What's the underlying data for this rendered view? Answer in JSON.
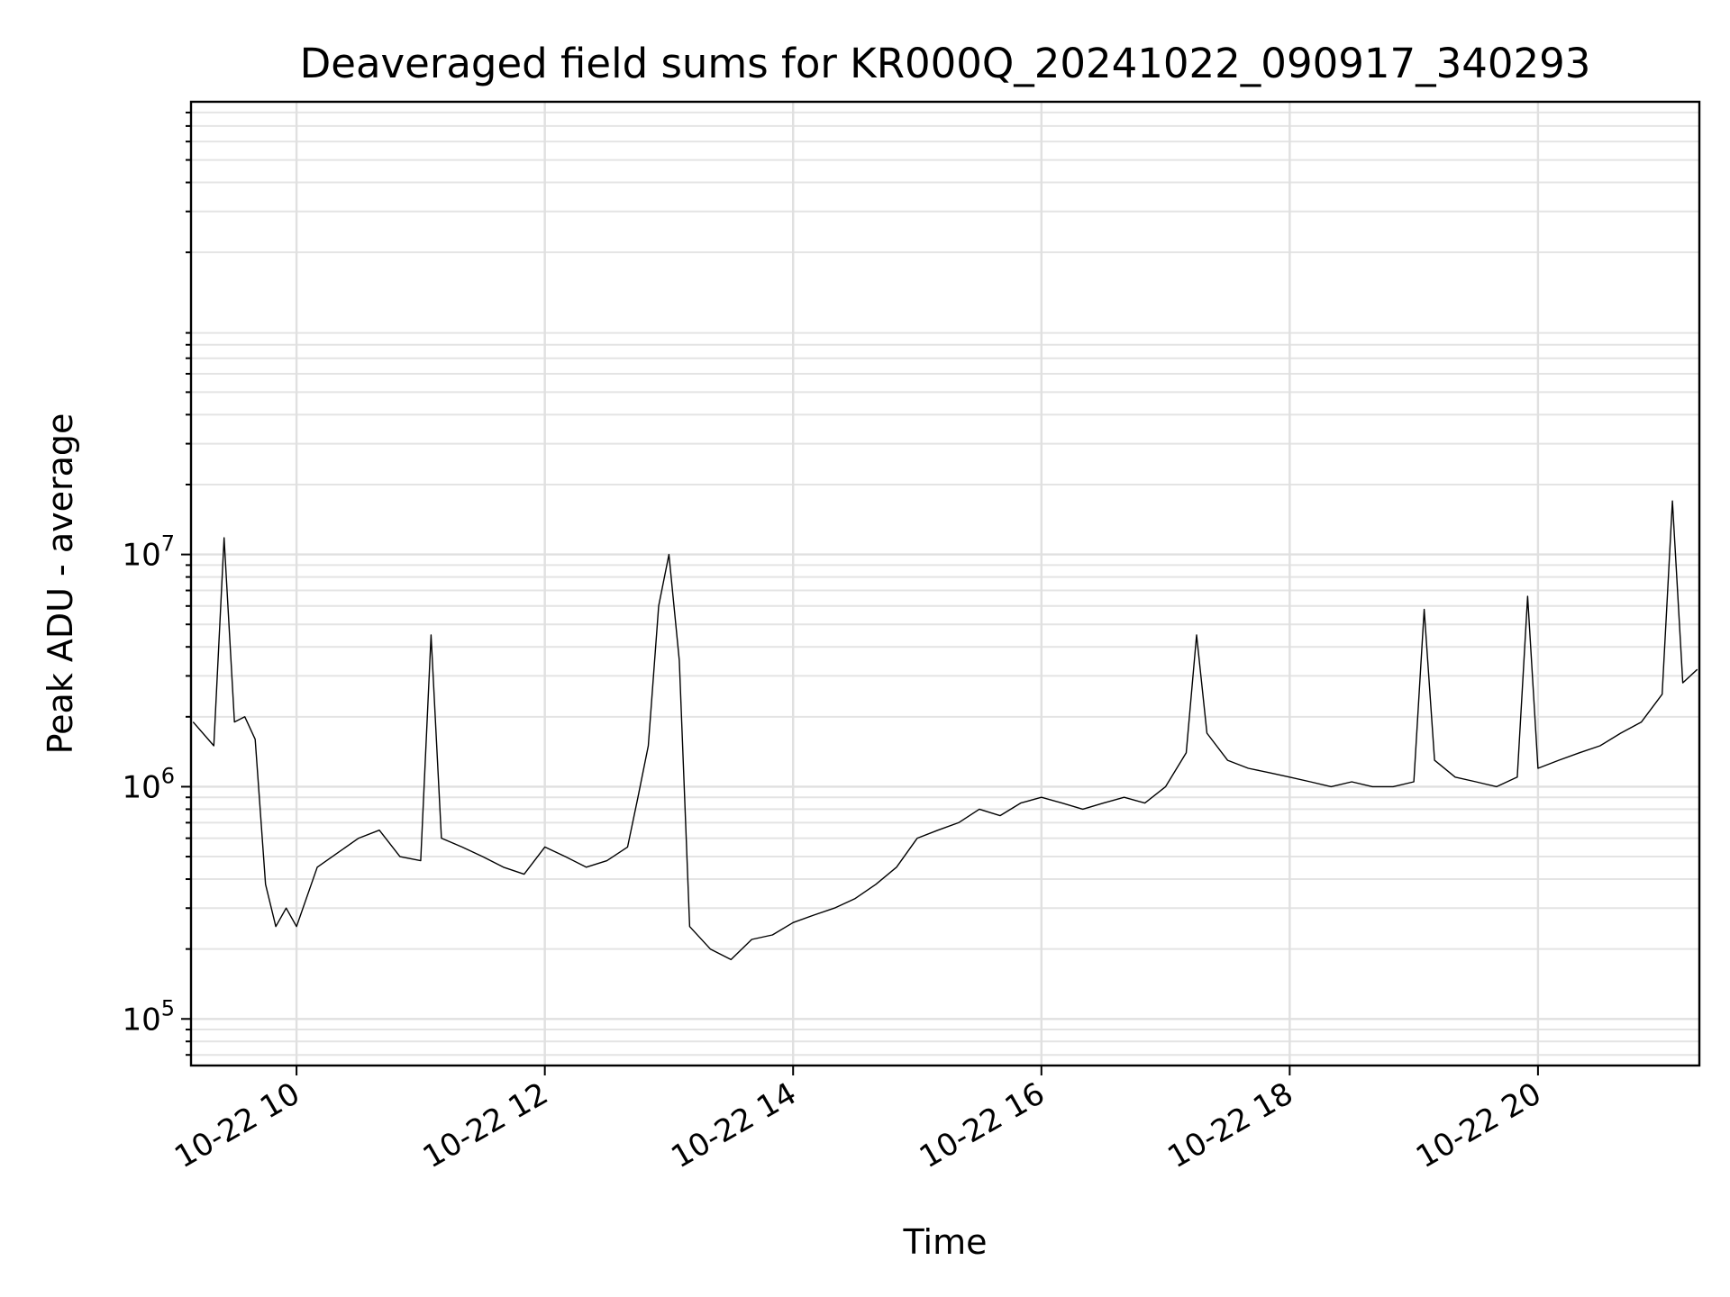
{
  "chart_data": {
    "type": "line",
    "title": "Deaveraged field sums for KR000Q_20241022_090917_340293",
    "xlabel": "Time",
    "ylabel": "Peak ADU - average",
    "x_date": "2024-10-22",
    "xlim": [
      "09:09",
      "21:18"
    ],
    "yscale": "log",
    "ylim": [
      63000,
      890000000
    ],
    "x_ticks": [
      "10-22 10",
      "10-22 12",
      "10-22 14",
      "10-22 16",
      "10-22 18",
      "10-22 20"
    ],
    "y_ticks": [
      {
        "base": "10",
        "exp": "5",
        "value": 100000
      },
      {
        "base": "10",
        "exp": "6",
        "value": 1000000
      },
      {
        "base": "10",
        "exp": "7",
        "value": 10000000
      }
    ],
    "grid": true,
    "legend": "none",
    "series_color": "#000000",
    "series": [
      {
        "x": [
          "09:10",
          "09:20",
          "09:25",
          "09:30",
          "09:35",
          "09:40",
          "09:45",
          "09:50",
          "09:55",
          "10:00",
          "10:10",
          "10:20",
          "10:30",
          "10:40",
          "10:50",
          "11:00",
          "11:05",
          "11:10",
          "11:20",
          "11:30",
          "11:40",
          "11:50",
          "12:00",
          "12:10",
          "12:20",
          "12:30",
          "12:40",
          "12:45",
          "12:50",
          "12:55",
          "13:00",
          "13:05",
          "13:10",
          "13:20",
          "13:30",
          "13:40",
          "13:50",
          "14:00",
          "14:10",
          "14:20",
          "14:30",
          "14:40",
          "14:50",
          "15:00",
          "15:10",
          "15:20",
          "15:30",
          "15:40",
          "15:50",
          "16:00",
          "16:10",
          "16:20",
          "16:30",
          "16:40",
          "16:50",
          "17:00",
          "17:10",
          "17:15",
          "17:20",
          "17:30",
          "17:40",
          "17:50",
          "18:00",
          "18:10",
          "18:20",
          "18:30",
          "18:40",
          "18:50",
          "19:00",
          "19:05",
          "19:10",
          "19:20",
          "19:30",
          "19:40",
          "19:50",
          "19:55",
          "20:00",
          "20:10",
          "20:20",
          "20:30",
          "20:40",
          "20:50",
          "21:00",
          "21:05",
          "21:10",
          "21:17"
        ],
        "values": [
          1900000,
          1500000,
          11800000,
          1900000,
          2000000,
          1600000,
          380000,
          250000,
          300000,
          250000,
          450000,
          520000,
          600000,
          650000,
          500000,
          480000,
          4500000,
          600000,
          550000,
          500000,
          450000,
          420000,
          550000,
          500000,
          450000,
          480000,
          550000,
          900000,
          1500000,
          6000000,
          10000000,
          3500000,
          250000,
          200000,
          180000,
          220000,
          230000,
          260000,
          280000,
          300000,
          330000,
          380000,
          450000,
          600000,
          650000,
          700000,
          800000,
          750000,
          850000,
          900000,
          850000,
          800000,
          850000,
          900000,
          850000,
          1000000,
          1400000,
          4500000,
          1700000,
          1300000,
          1200000,
          1150000,
          1100000,
          1050000,
          1000000,
          1050000,
          1000000,
          1000000,
          1050000,
          5800000,
          1300000,
          1100000,
          1050000,
          1000000,
          1100000,
          6600000,
          1200000,
          1300000,
          1400000,
          1500000,
          1700000,
          1900000,
          2500000,
          17000000,
          2800000,
          3200000
        ]
      }
    ]
  }
}
